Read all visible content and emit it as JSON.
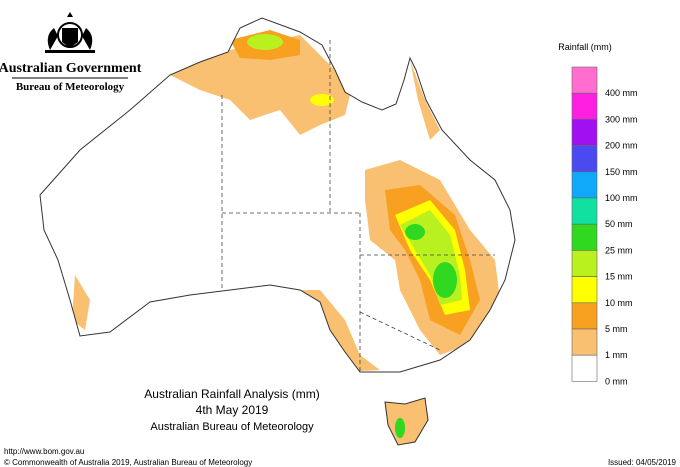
{
  "header": {
    "agency": "Australian Government",
    "bureau": "Bureau of Meteorology"
  },
  "legend": {
    "title": "Rainfall (mm)",
    "items": [
      {
        "label": "400 mm",
        "color": "#ff6ecf"
      },
      {
        "label": "300 mm",
        "color": "#ff1fe0"
      },
      {
        "label": "200 mm",
        "color": "#a010f0"
      },
      {
        "label": "150 mm",
        "color": "#4a4af0"
      },
      {
        "label": "100 mm",
        "color": "#10a8f8"
      },
      {
        "label": "50 mm",
        "color": "#10e0a0"
      },
      {
        "label": "25 mm",
        "color": "#30d820"
      },
      {
        "label": "15 mm",
        "color": "#b8f020"
      },
      {
        "label": "10 mm",
        "color": "#ffff00"
      },
      {
        "label": "5 mm",
        "color": "#f8a020"
      },
      {
        "label": "1 mm",
        "color": "#f8c070"
      },
      {
        "label": "0 mm",
        "color": "#ffffff"
      }
    ]
  },
  "title": {
    "line1": "Australian Rainfall Analysis (mm)",
    "line2": "4th May 2019",
    "line3": "Australian Bureau of Meteorology"
  },
  "footer": {
    "url": "http://www.bom.gov.au",
    "copyright": "© Commonwealth of Australia 2019, Australian Bureau of Meteorology",
    "issued": "Issued: 04/05/2019"
  }
}
